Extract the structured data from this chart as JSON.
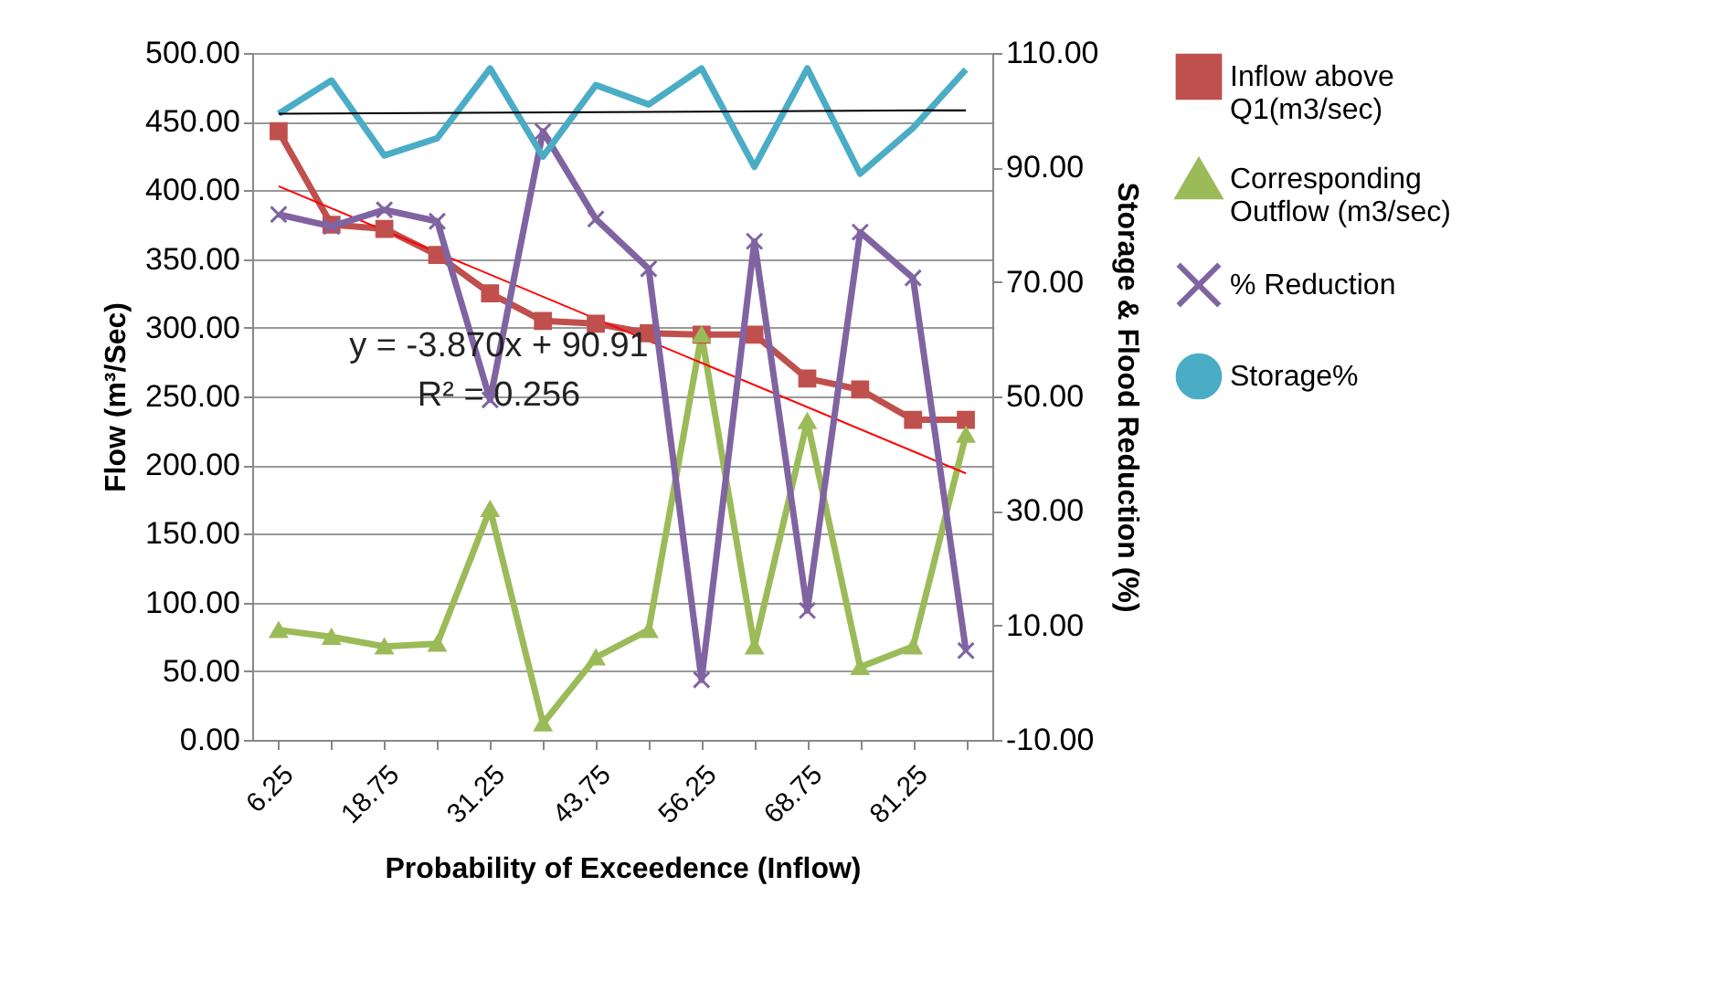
{
  "chart_data": {
    "type": "line",
    "xlabel": "Probability of Exceedence (Inflow)",
    "ylabel": "Flow (m³/Sec)",
    "y2label": "Storage & Flood Reduction (%)",
    "categories": [
      "6.25",
      null,
      "18.75",
      null,
      "31.25",
      null,
      "43.75",
      null,
      "56.25",
      null,
      "68.75",
      null,
      "81.25",
      null
    ],
    "series": [
      {
        "name": "Inflow above Q1(m3/sec)",
        "color": "#c0504d",
        "marker": "square",
        "values": [
          443,
          375,
          372,
          353,
          325,
          305,
          303,
          296,
          295,
          295,
          263,
          255,
          233,
          233
        ]
      },
      {
        "name": "Corresponding Outflow (m3/sec)",
        "color": "#9bbb59",
        "marker": "triangle",
        "values": [
          80,
          75,
          68,
          70,
          168,
          12,
          60,
          80,
          295,
          68,
          232,
          53,
          68,
          222
        ]
      },
      {
        "name": "% Reduction",
        "color": "#8064a2",
        "marker": "cross",
        "axis": "y2",
        "values": [
          81.8,
          79.7,
          82.6,
          80.6,
          49.4,
          96.3,
          81.0,
          72.3,
          0.5,
          77.1,
          12.6,
          78.7,
          70.7,
          5.6
        ]
      },
      {
        "name": "Storage%",
        "color": "#4bacc6",
        "marker": "none",
        "axis": "y2",
        "values": [
          99.4,
          105.2,
          92.1,
          95.1,
          107.3,
          91.9,
          104.4,
          101.0,
          107.3,
          90.1,
          107.3,
          88.9,
          96.9,
          107.1
        ]
      },
      {
        "color": "#ff0000",
        "marker": "none",
        "values": [
          403,
          null,
          null,
          null,
          null,
          null,
          null,
          null,
          null,
          null,
          null,
          null,
          null,
          194
        ]
      },
      {
        "color": "#000000",
        "marker": "none",
        "axis": "y2",
        "values": [
          99.4,
          null,
          null,
          null,
          null,
          null,
          null,
          null,
          null,
          null,
          null,
          null,
          null,
          100.0
        ]
      }
    ],
    "ylim": [
      0,
      500
    ],
    "yticks": [
      {
        "value": 0,
        "label": "0.00"
      },
      {
        "value": 50,
        "label": "50.00"
      },
      {
        "value": 100,
        "label": "100.00"
      },
      {
        "value": 150,
        "label": "150.00"
      },
      {
        "value": 200,
        "label": "200.00"
      },
      {
        "value": 250,
        "label": "250.00"
      },
      {
        "value": 300,
        "label": "300.00"
      },
      {
        "value": 350,
        "label": "350.00"
      },
      {
        "value": 400,
        "label": "400.00"
      },
      {
        "value": 450,
        "label": "450.00"
      },
      {
        "value": 500,
        "label": "500.00"
      }
    ],
    "y2lim": [
      -10,
      110
    ],
    "y2ticks": [
      {
        "value": -10,
        "label": "-10.00"
      },
      {
        "value": 10,
        "label": "10.00"
      },
      {
        "value": 30,
        "label": "30.00"
      },
      {
        "value": 50,
        "label": "50.00"
      },
      {
        "value": 70,
        "label": "70.00"
      },
      {
        "value": 90,
        "label": "90.00"
      },
      {
        "value": 110,
        "label": "110.00"
      }
    ],
    "annotations": [
      "y = -3.870x + 90.91",
      "R² = 0.256"
    ],
    "grid": "y",
    "legend": "right"
  }
}
